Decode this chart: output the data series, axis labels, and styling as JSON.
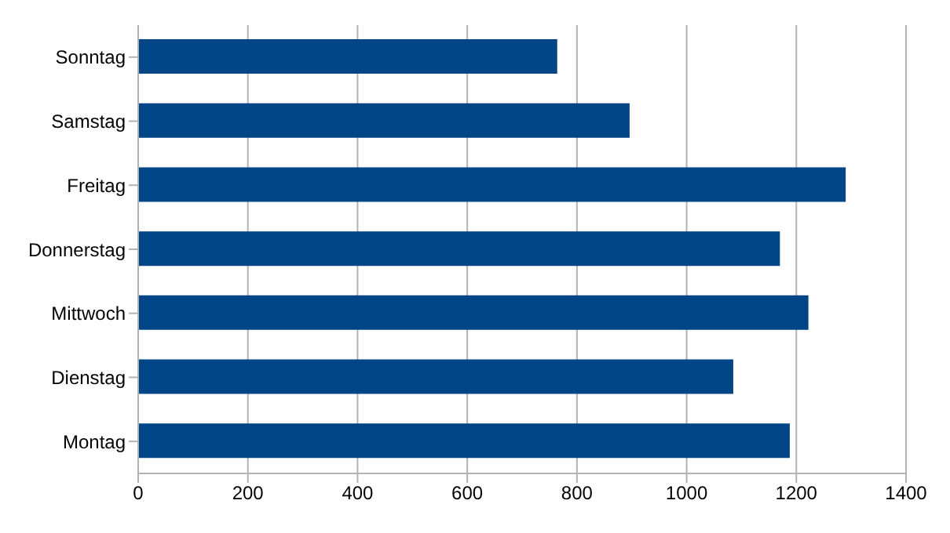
{
  "chart_data": {
    "type": "bar",
    "orientation": "horizontal",
    "categories": [
      "Sonntag",
      "Samstag",
      "Freitag",
      "Donnerstag",
      "Mittwoch",
      "Dienstag",
      "Montag"
    ],
    "values": [
      764,
      896,
      1290,
      1170,
      1222,
      1085,
      1188
    ],
    "color": "#004586",
    "xlim": [
      0,
      1400
    ],
    "xticks": [
      0,
      200,
      400,
      600,
      800,
      1000,
      1200,
      1400
    ],
    "grid": "x",
    "legend": false
  }
}
